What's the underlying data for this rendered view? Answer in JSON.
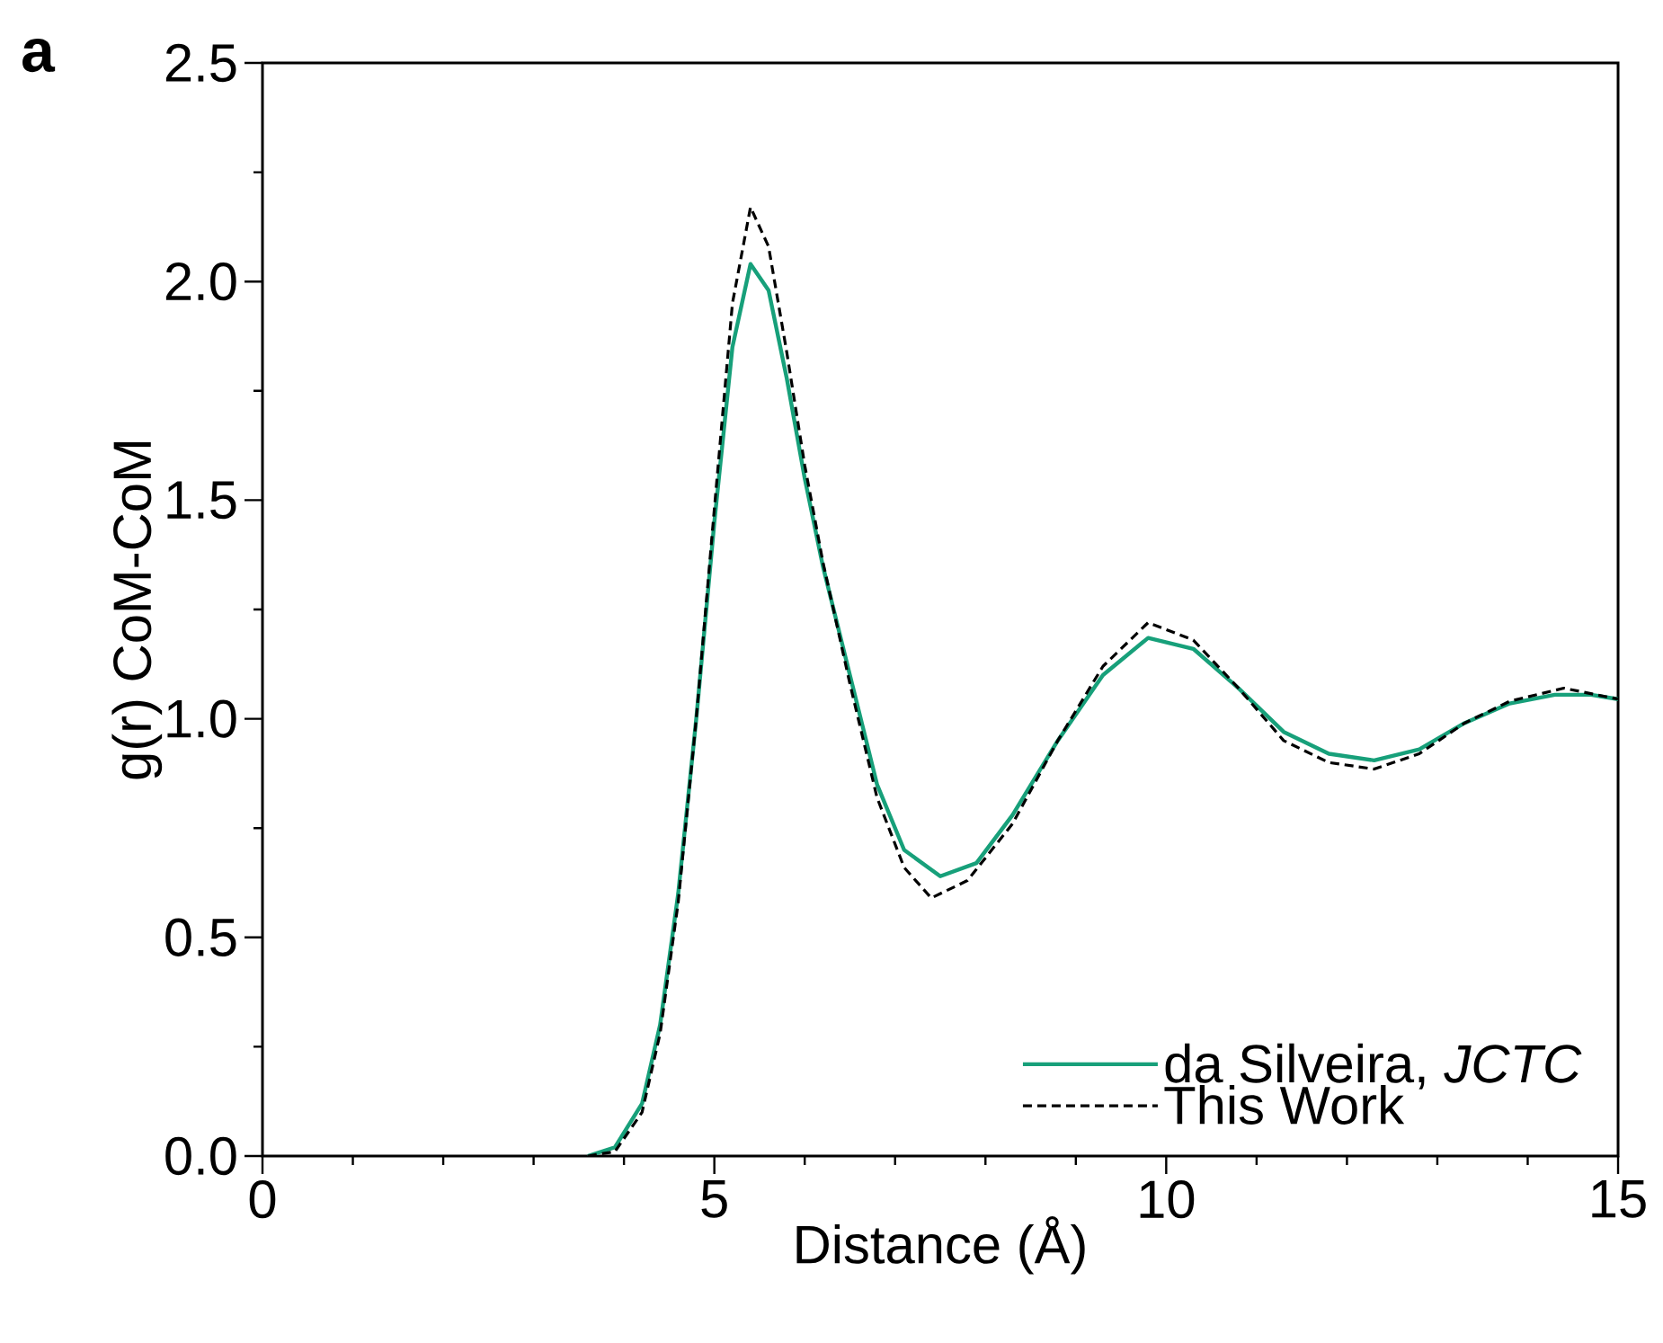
{
  "chart_data": {
    "type": "line",
    "xlabel": "Distance (Å)",
    "ylabel": "g(r) CoM-CoM",
    "annotations": [
      "**a**"
    ],
    "xlim": [
      0,
      15
    ],
    "ylim": [
      0,
      2.5
    ],
    "xticks": [
      0,
      5,
      10,
      15
    ],
    "yticks": [
      {
        "value": 0,
        "label": "0.0"
      },
      {
        "value": 0.5,
        "label": "0.5"
      },
      {
        "value": 1,
        "label": "1.0"
      },
      {
        "value": 1.5,
        "label": "1.5"
      },
      {
        "value": 2,
        "label": "2.0"
      },
      {
        "value": 2.5,
        "label": "2.5"
      }
    ],
    "grid": false,
    "legend": "bottom right",
    "series": [
      {
        "name": "da Silveira, *JCTC*",
        "color": "#17a07a",
        "line_style": "solid",
        "x": [
          3.6,
          3.9,
          4.2,
          4.4,
          4.6,
          4.8,
          5.0,
          5.2,
          5.4,
          5.6,
          5.8,
          6.0,
          6.2,
          6.5,
          6.8,
          7.1,
          7.5,
          7.9,
          8.3,
          8.8,
          9.3,
          9.8,
          10.3,
          10.8,
          11.3,
          11.8,
          12.3,
          12.8,
          13.3,
          13.8,
          14.3,
          14.7,
          15.0
        ],
        "values": [
          0,
          0.02,
          0.12,
          0.3,
          0.6,
          1.0,
          1.45,
          1.85,
          2.04,
          1.98,
          1.78,
          1.55,
          1.35,
          1.1,
          0.85,
          0.7,
          0.64,
          0.67,
          0.78,
          0.95,
          1.1,
          1.185,
          1.16,
          1.07,
          0.97,
          0.92,
          0.905,
          0.93,
          0.99,
          1.035,
          1.055,
          1.055,
          1.045
        ]
      },
      {
        "name": "This Work",
        "color": "#000000",
        "line_style": "dashed",
        "x": [
          3.6,
          3.9,
          4.2,
          4.4,
          4.6,
          4.8,
          5.0,
          5.2,
          5.4,
          5.6,
          5.8,
          6.0,
          6.2,
          6.5,
          6.8,
          7.1,
          7.4,
          7.8,
          8.3,
          8.8,
          9.3,
          9.8,
          10.3,
          10.8,
          11.3,
          11.8,
          12.3,
          12.8,
          13.3,
          13.8,
          14.4,
          15.0
        ],
        "values": [
          0,
          0.01,
          0.1,
          0.28,
          0.58,
          1.0,
          1.48,
          1.95,
          2.17,
          2.08,
          1.84,
          1.58,
          1.36,
          1.08,
          0.82,
          0.66,
          0.59,
          0.63,
          0.76,
          0.95,
          1.12,
          1.22,
          1.18,
          1.07,
          0.95,
          0.9,
          0.885,
          0.92,
          0.99,
          1.04,
          1.07,
          1.045
        ]
      }
    ]
  }
}
